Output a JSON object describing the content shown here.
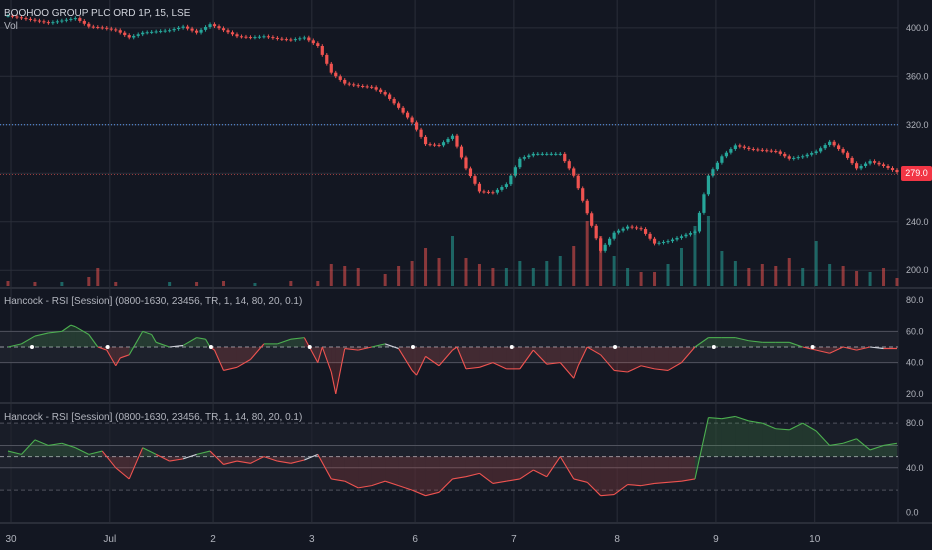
{
  "header": {
    "symbol_title": "BOOHOO GROUP PLC ORD 1P, 15, LSE",
    "volume_label": "Vol"
  },
  "price_label": "279.0",
  "colors": {
    "up": "#26a69a",
    "down": "#ef5350",
    "background": "#131722",
    "grid": "#2a2e39",
    "rsi_up": "#4caf50",
    "rsi_down": "#ef5350",
    "rsi_neutral": "#d1d4dc"
  },
  "chart_data": [
    {
      "type": "line",
      "name": "price",
      "y_ticks": [
        "400.0",
        "360.0",
        "320.0",
        "280.0",
        "240.0",
        "200.0"
      ],
      "ylim": [
        187,
        418
      ],
      "last_price": 279.0,
      "dotted_level": 320,
      "x_ticks": [
        "30",
        "Jul",
        "2",
        "3",
        "6",
        "7",
        "8",
        "9",
        "10"
      ],
      "close": [
        [
          0,
          410
        ],
        [
          3,
          408
        ],
        [
          6,
          406
        ],
        [
          9,
          404
        ],
        [
          12,
          406
        ],
        [
          15,
          408
        ],
        [
          18,
          401
        ],
        [
          21,
          400
        ],
        [
          24,
          398
        ],
        [
          27,
          392
        ],
        [
          30,
          396
        ],
        [
          33,
          397
        ],
        [
          36,
          398
        ],
        [
          39,
          401
        ],
        [
          42,
          396
        ],
        [
          45,
          403
        ],
        [
          48,
          398
        ],
        [
          51,
          393
        ],
        [
          54,
          392
        ],
        [
          57,
          393
        ],
        [
          60,
          391
        ],
        [
          63,
          390
        ],
        [
          66,
          392
        ],
        [
          69,
          385
        ],
        [
          72,
          363
        ],
        [
          75,
          354
        ],
        [
          78,
          352
        ],
        [
          81,
          351
        ],
        [
          84,
          345
        ],
        [
          87,
          334
        ],
        [
          90,
          322
        ],
        [
          93,
          304
        ],
        [
          96,
          303
        ],
        [
          99,
          311
        ],
        [
          102,
          284
        ],
        [
          105,
          265
        ],
        [
          108,
          264
        ],
        [
          111,
          271
        ],
        [
          114,
          292
        ],
        [
          117,
          296
        ],
        [
          120,
          296
        ],
        [
          123,
          296
        ],
        [
          126,
          278
        ],
        [
          129,
          247
        ],
        [
          132,
          216
        ],
        [
          135,
          231
        ],
        [
          138,
          236
        ],
        [
          141,
          234
        ],
        [
          144,
          222
        ],
        [
          147,
          224
        ],
        [
          150,
          228
        ],
        [
          153,
          232
        ],
        [
          156,
          278
        ],
        [
          159,
          294
        ],
        [
          162,
          303
        ],
        [
          165,
          300
        ],
        [
          168,
          299
        ],
        [
          171,
          298
        ],
        [
          174,
          292
        ],
        [
          177,
          294
        ],
        [
          180,
          298
        ],
        [
          183,
          306
        ],
        [
          186,
          297
        ],
        [
          189,
          284
        ],
        [
          192,
          290
        ],
        [
          195,
          286
        ],
        [
          198,
          281
        ]
      ],
      "volume": [
        [
          0,
          5
        ],
        [
          6,
          4
        ],
        [
          12,
          4
        ],
        [
          18,
          9
        ],
        [
          20,
          18
        ],
        [
          24,
          4
        ],
        [
          36,
          4
        ],
        [
          42,
          4
        ],
        [
          48,
          5
        ],
        [
          55,
          3
        ],
        [
          63,
          5
        ],
        [
          69,
          5
        ],
        [
          72,
          22
        ],
        [
          75,
          20
        ],
        [
          78,
          18
        ],
        [
          84,
          12
        ],
        [
          87,
          20
        ],
        [
          90,
          25
        ],
        [
          93,
          38
        ],
        [
          96,
          28
        ],
        [
          99,
          50
        ],
        [
          102,
          28
        ],
        [
          105,
          22
        ],
        [
          108,
          18
        ],
        [
          111,
          18
        ],
        [
          114,
          25
        ],
        [
          117,
          18
        ],
        [
          120,
          25
        ],
        [
          123,
          30
        ],
        [
          126,
          40
        ],
        [
          129,
          65
        ],
        [
          132,
          50
        ],
        [
          135,
          30
        ],
        [
          138,
          18
        ],
        [
          141,
          14
        ],
        [
          144,
          14
        ],
        [
          147,
          22
        ],
        [
          150,
          38
        ],
        [
          153,
          60
        ],
        [
          156,
          70
        ],
        [
          159,
          35
        ],
        [
          162,
          25
        ],
        [
          165,
          18
        ],
        [
          168,
          22
        ],
        [
          171,
          20
        ],
        [
          174,
          28
        ],
        [
          177,
          18
        ],
        [
          180,
          45
        ],
        [
          183,
          22
        ],
        [
          186,
          20
        ],
        [
          189,
          15
        ],
        [
          192,
          14
        ],
        [
          195,
          18
        ],
        [
          198,
          8
        ]
      ]
    },
    {
      "type": "area",
      "name": "Hancock - RSI [Session] (0800-1630, 23456, TR, 1, 14, 80, 20, 0.1)",
      "y_ticks": [
        "80.0",
        "60.0",
        "40.0",
        "20.0"
      ],
      "ylim": [
        18,
        82
      ],
      "levels": [
        60,
        50,
        40
      ],
      "values": [
        [
          0,
          50
        ],
        [
          3,
          52
        ],
        [
          6,
          57
        ],
        [
          9,
          59
        ],
        [
          12,
          60
        ],
        [
          14,
          64
        ],
        [
          15,
          63
        ],
        [
          18,
          58
        ],
        [
          20,
          50
        ],
        [
          22,
          48
        ],
        [
          24,
          38
        ],
        [
          25,
          43
        ],
        [
          27,
          45
        ],
        [
          30,
          60
        ],
        [
          32,
          58
        ],
        [
          33,
          53
        ],
        [
          36,
          50
        ],
        [
          39,
          51
        ],
        [
          42,
          56
        ],
        [
          44,
          55
        ],
        [
          45,
          50
        ],
        [
          46,
          48
        ],
        [
          48,
          35
        ],
        [
          51,
          37
        ],
        [
          54,
          42
        ],
        [
          57,
          52
        ],
        [
          60,
          52
        ],
        [
          63,
          55
        ],
        [
          66,
          56
        ],
        [
          69,
          40
        ],
        [
          70,
          50
        ],
        [
          72,
          34
        ],
        [
          73,
          20
        ],
        [
          75,
          49
        ],
        [
          78,
          48
        ],
        [
          81,
          50
        ],
        [
          84,
          52
        ],
        [
          87,
          49
        ],
        [
          90,
          35
        ],
        [
          91,
          32
        ],
        [
          93,
          44
        ],
        [
          96,
          38
        ],
        [
          99,
          48
        ],
        [
          100,
          50
        ],
        [
          102,
          36
        ],
        [
          105,
          37
        ],
        [
          108,
          40
        ],
        [
          111,
          36
        ],
        [
          114,
          36
        ],
        [
          117,
          48
        ],
        [
          120,
          39
        ],
        [
          123,
          40
        ],
        [
          126,
          30
        ],
        [
          127,
          38
        ],
        [
          129,
          50
        ],
        [
          132,
          45
        ],
        [
          135,
          35
        ],
        [
          138,
          34
        ],
        [
          141,
          38
        ],
        [
          144,
          36
        ],
        [
          147,
          35
        ],
        [
          150,
          40
        ],
        [
          153,
          50
        ],
        [
          156,
          56
        ],
        [
          159,
          56
        ],
        [
          162,
          56
        ],
        [
          165,
          54
        ],
        [
          168,
          53
        ],
        [
          171,
          53
        ],
        [
          174,
          53
        ],
        [
          177,
          50
        ],
        [
          180,
          48
        ],
        [
          183,
          46
        ],
        [
          186,
          50
        ],
        [
          189,
          48
        ],
        [
          192,
          50
        ],
        [
          195,
          49
        ],
        [
          198,
          49
        ]
      ]
    },
    {
      "type": "area",
      "name": "Hancock - RSI [Session] (0800-1630, 23456, TR, 1, 14, 80, 20, 0.1)",
      "y_ticks": [
        "80.0",
        "40.0",
        "0.0"
      ],
      "ylim": [
        -5,
        90
      ],
      "levels": [
        80,
        60,
        50,
        40,
        20
      ],
      "values": [
        [
          0,
          55
        ],
        [
          3,
          52
        ],
        [
          6,
          65
        ],
        [
          9,
          60
        ],
        [
          12,
          62
        ],
        [
          15,
          58
        ],
        [
          18,
          52
        ],
        [
          21,
          55
        ],
        [
          24,
          40
        ],
        [
          27,
          30
        ],
        [
          30,
          58
        ],
        [
          33,
          52
        ],
        [
          36,
          46
        ],
        [
          39,
          48
        ],
        [
          42,
          52
        ],
        [
          45,
          55
        ],
        [
          48,
          43
        ],
        [
          51,
          46
        ],
        [
          54,
          44
        ],
        [
          57,
          50
        ],
        [
          60,
          46
        ],
        [
          63,
          44
        ],
        [
          66,
          47
        ],
        [
          69,
          52
        ],
        [
          72,
          30
        ],
        [
          75,
          28
        ],
        [
          78,
          22
        ],
        [
          81,
          24
        ],
        [
          84,
          28
        ],
        [
          87,
          24
        ],
        [
          90,
          20
        ],
        [
          93,
          15
        ],
        [
          96,
          18
        ],
        [
          99,
          30
        ],
        [
          102,
          32
        ],
        [
          105,
          35
        ],
        [
          108,
          26
        ],
        [
          111,
          28
        ],
        [
          114,
          30
        ],
        [
          117,
          38
        ],
        [
          120,
          32
        ],
        [
          123,
          50
        ],
        [
          126,
          30
        ],
        [
          129,
          27
        ],
        [
          132,
          15
        ],
        [
          135,
          16
        ],
        [
          138,
          25
        ],
        [
          141,
          24
        ],
        [
          144,
          26
        ],
        [
          147,
          27
        ],
        [
          150,
          28
        ],
        [
          153,
          30
        ],
        [
          156,
          85
        ],
        [
          159,
          84
        ],
        [
          162,
          86
        ],
        [
          165,
          82
        ],
        [
          168,
          80
        ],
        [
          171,
          75
        ],
        [
          174,
          74
        ],
        [
          177,
          80
        ],
        [
          180,
          73
        ],
        [
          183,
          60
        ],
        [
          186,
          62
        ],
        [
          189,
          66
        ],
        [
          192,
          56
        ],
        [
          195,
          60
        ],
        [
          198,
          62
        ]
      ]
    }
  ]
}
